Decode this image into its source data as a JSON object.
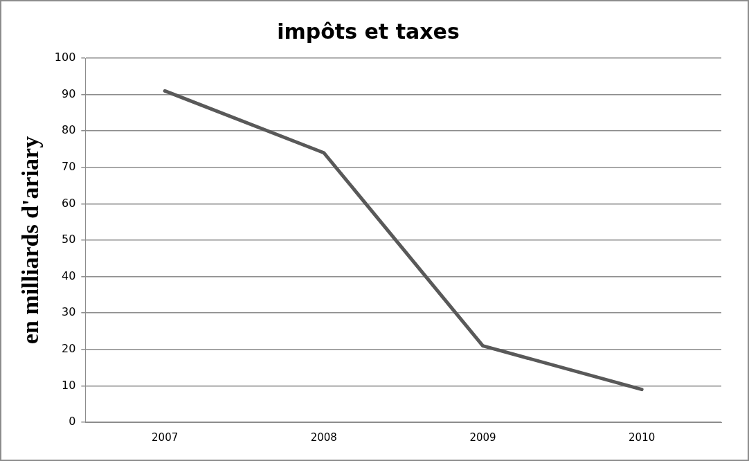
{
  "chart_data": {
    "type": "line",
    "title": "impôts et taxes",
    "ylabel": "en milliards d'ariary",
    "categories": [
      "2007",
      "2008",
      "2009",
      "2010"
    ],
    "series": [
      {
        "color": "#595959",
        "values": [
          91,
          74,
          21,
          9
        ]
      }
    ],
    "ylim": [
      0,
      100
    ],
    "yticks": [
      0,
      10,
      20,
      30,
      40,
      50,
      60,
      70,
      80,
      90,
      100
    ],
    "grid": "y",
    "legend": false,
    "marker": "none",
    "line_style": "solid"
  }
}
